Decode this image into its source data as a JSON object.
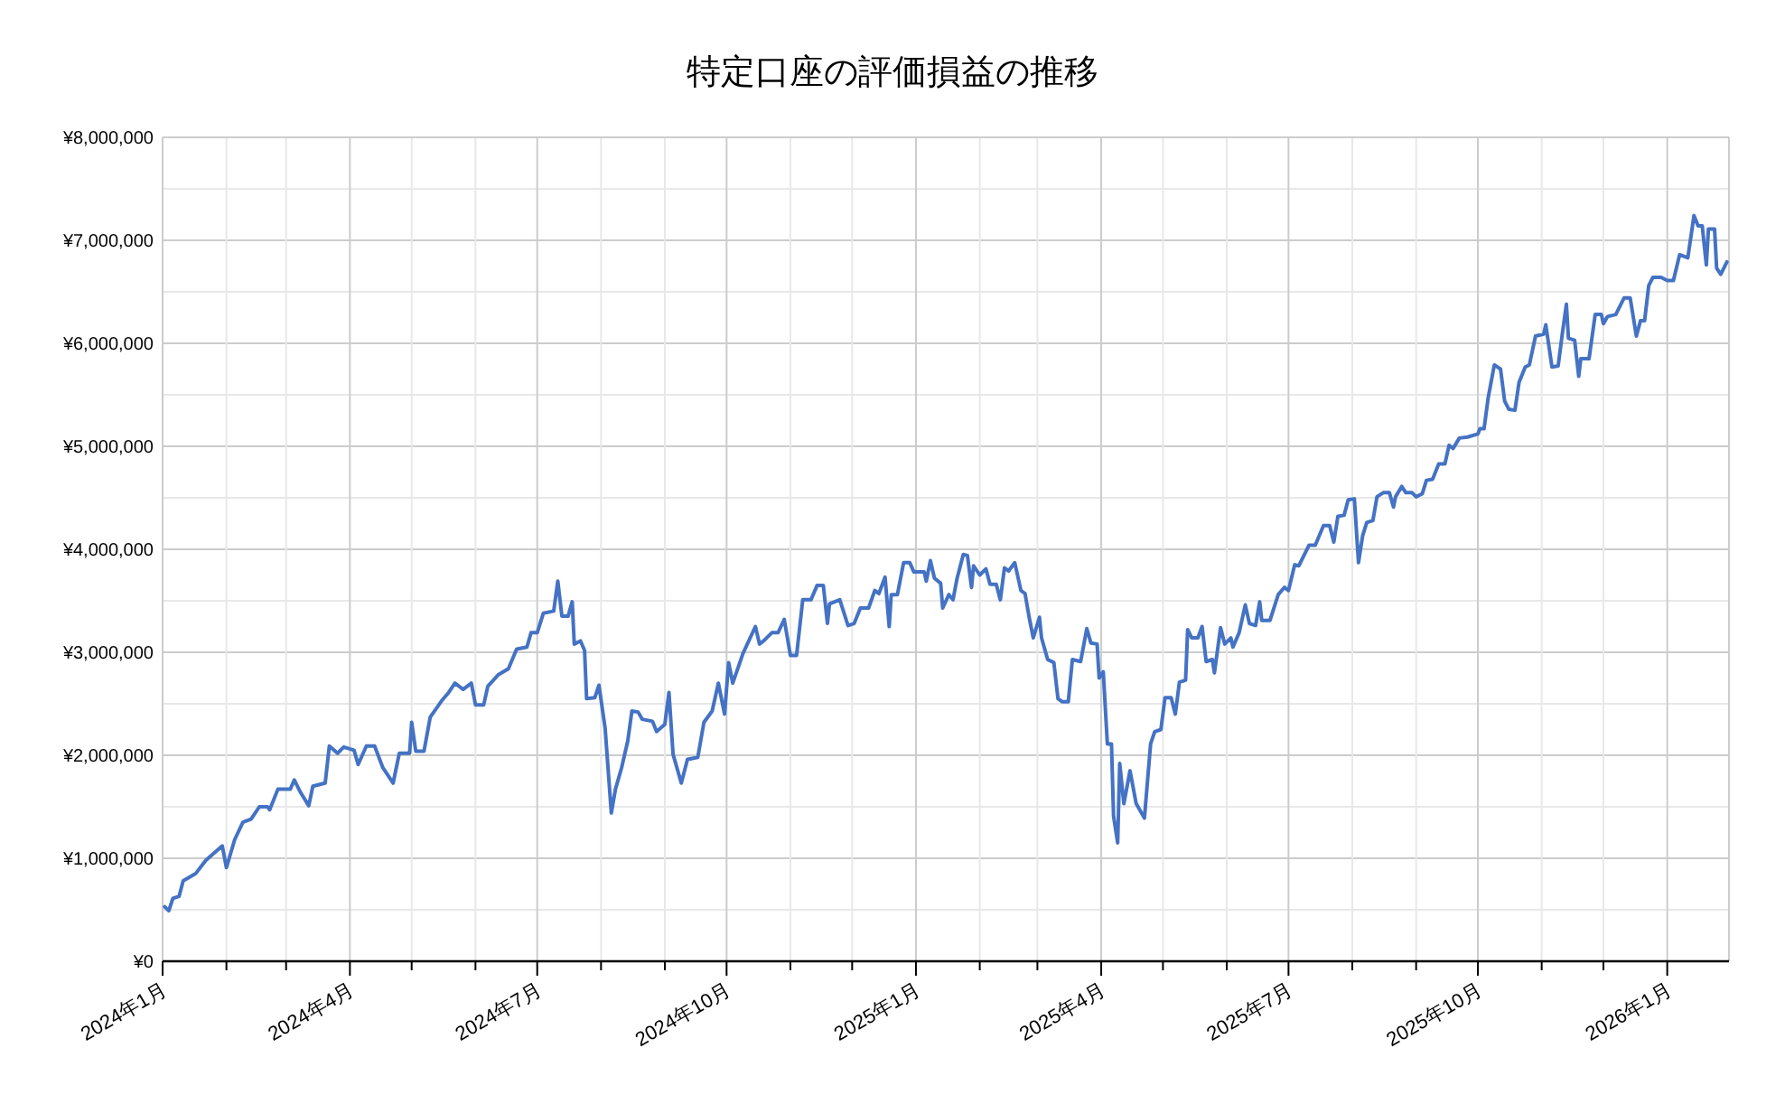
{
  "chart_data": {
    "type": "line",
    "title": "特定口座の評価損益の推移",
    "x": [
      "2024-01-02",
      "2024-01-04",
      "2024-01-06",
      "2024-01-09",
      "2024-01-11",
      "2024-01-17",
      "2024-01-22",
      "2024-01-30",
      "2024-02-01",
      "2024-02-05",
      "2024-02-09",
      "2024-02-13",
      "2024-02-17",
      "2024-02-21",
      "2024-02-22",
      "2024-02-26",
      "2024-03-03",
      "2024-03-05",
      "2024-03-08",
      "2024-03-12",
      "2024-03-14",
      "2024-03-20",
      "2024-03-22",
      "2024-03-26",
      "2024-03-29",
      "2024-04-03",
      "2024-04-05",
      "2024-04-09",
      "2024-04-13",
      "2024-04-17",
      "2024-04-22",
      "2024-04-25",
      "2024-04-30",
      "2024-05-01",
      "2024-05-03",
      "2024-05-07",
      "2024-05-10",
      "2024-05-16",
      "2024-05-19",
      "2024-05-22",
      "2024-05-26",
      "2024-05-30",
      "2024-06-01",
      "2024-06-05",
      "2024-06-07",
      "2024-06-12",
      "2024-06-17",
      "2024-06-21",
      "2024-06-26",
      "2024-06-28",
      "2024-07-01",
      "2024-07-04",
      "2024-07-09",
      "2024-07-11",
      "2024-07-13",
      "2024-07-16",
      "2024-07-18",
      "2024-07-19",
      "2024-07-22",
      "2024-07-24",
      "2024-07-25",
      "2024-07-29",
      "2024-07-31",
      "2024-08-03",
      "2024-08-06",
      "2024-08-08",
      "2024-08-11",
      "2024-08-14",
      "2024-08-16",
      "2024-08-19",
      "2024-08-21",
      "2024-08-26",
      "2024-08-28",
      "2024-09-01",
      "2024-09-03",
      "2024-09-05",
      "2024-09-09",
      "2024-09-12",
      "2024-09-17",
      "2024-09-20",
      "2024-09-24",
      "2024-09-27",
      "2024-09-30",
      "2024-10-02",
      "2024-10-04",
      "2024-10-09",
      "2024-10-15",
      "2024-10-17",
      "2024-10-19",
      "2024-10-23",
      "2024-10-26",
      "2024-10-29",
      "2024-11-01",
      "2024-11-04",
      "2024-11-07",
      "2024-11-11",
      "2024-11-14",
      "2024-11-17",
      "2024-11-19",
      "2024-11-20",
      "2024-11-25",
      "2024-11-29",
      "2024-12-02",
      "2024-12-05",
      "2024-12-09",
      "2024-12-12",
      "2024-12-14",
      "2024-12-17",
      "2024-12-19",
      "2024-12-20",
      "2024-12-23",
      "2024-12-26",
      "2024-12-29",
      "2024-12-31",
      "2025-01-05",
      "2025-01-06",
      "2025-01-08",
      "2025-01-10",
      "2025-01-13",
      "2025-01-14",
      "2025-01-17",
      "2025-01-19",
      "2025-01-21",
      "2025-01-24",
      "2025-01-26",
      "2025-01-28",
      "2025-01-29",
      "2025-02-01",
      "2025-02-04",
      "2025-02-06",
      "2025-02-09",
      "2025-02-11",
      "2025-02-13",
      "2025-02-15",
      "2025-02-18",
      "2025-02-21",
      "2025-02-23",
      "2025-02-25",
      "2025-02-27",
      "2025-03-02",
      "2025-03-03",
      "2025-03-06",
      "2025-03-09",
      "2025-03-11",
      "2025-03-13",
      "2025-03-16",
      "2025-03-18",
      "2025-03-22",
      "2025-03-25",
      "2025-03-27",
      "2025-03-30",
      "2025-03-31",
      "2025-04-02",
      "2025-04-04",
      "2025-04-06",
      "2025-04-07",
      "2025-04-09",
      "2025-04-10",
      "2025-04-12",
      "2025-04-15",
      "2025-04-18",
      "2025-04-22",
      "2025-04-25",
      "2025-04-27",
      "2025-04-30",
      "2025-05-02",
      "2025-05-05",
      "2025-05-07",
      "2025-05-09",
      "2025-05-12",
      "2025-05-13",
      "2025-05-15",
      "2025-05-18",
      "2025-05-20",
      "2025-05-22",
      "2025-05-25",
      "2025-05-26",
      "2025-05-29",
      "2025-05-31",
      "2025-06-03",
      "2025-06-04",
      "2025-06-07",
      "2025-06-10",
      "2025-06-12",
      "2025-06-15",
      "2025-06-17",
      "2025-06-18",
      "2025-06-22",
      "2025-06-26",
      "2025-06-29",
      "2025-07-01",
      "2025-07-04",
      "2025-07-06",
      "2025-07-11",
      "2025-07-14",
      "2025-07-18",
      "2025-07-21",
      "2025-07-23",
      "2025-07-25",
      "2025-07-28",
      "2025-07-30",
      "2025-08-02",
      "2025-08-04",
      "2025-08-06",
      "2025-08-08",
      "2025-08-11",
      "2025-08-13",
      "2025-08-16",
      "2025-08-19",
      "2025-08-21",
      "2025-08-22",
      "2025-08-25",
      "2025-08-27",
      "2025-08-30",
      "2025-09-01",
      "2025-09-04",
      "2025-09-06",
      "2025-09-09",
      "2025-09-12",
      "2025-09-15",
      "2025-09-17",
      "2025-09-19",
      "2025-09-22",
      "2025-09-26",
      "2025-10-01",
      "2025-10-02",
      "2025-10-04",
      "2025-10-06",
      "2025-10-09",
      "2025-10-12",
      "2025-10-14",
      "2025-10-16",
      "2025-10-19",
      "2025-10-21",
      "2025-10-24",
      "2025-10-26",
      "2025-10-29",
      "2025-11-02",
      "2025-11-03",
      "2025-11-06",
      "2025-11-09",
      "2025-11-11",
      "2025-11-13",
      "2025-11-14",
      "2025-11-17",
      "2025-11-19",
      "2025-11-20",
      "2025-11-24",
      "2025-11-27",
      "2025-11-30",
      "2025-12-01",
      "2025-12-03",
      "2025-12-07",
      "2025-12-11",
      "2025-12-14",
      "2025-12-17",
      "2025-12-19",
      "2025-12-21",
      "2025-12-23",
      "2025-12-25",
      "2025-12-29",
      "2026-01-01",
      "2026-01-04",
      "2026-01-07",
      "2026-01-11",
      "2026-01-14",
      "2026-01-16",
      "2026-01-18",
      "2026-01-20",
      "2026-01-21",
      "2026-01-24",
      "2026-01-25",
      "2026-01-27",
      "2026-01-30"
    ],
    "series": [
      {
        "color": "#4472c4",
        "values": [
          530000,
          490000,
          610000,
          630000,
          780000,
          850000,
          980000,
          1120000,
          910000,
          1180000,
          1350000,
          1380000,
          1500000,
          1500000,
          1470000,
          1670000,
          1670000,
          1760000,
          1640000,
          1510000,
          1700000,
          1730000,
          2090000,
          2020000,
          2080000,
          2050000,
          1910000,
          2090000,
          2090000,
          1880000,
          1730000,
          2020000,
          2020000,
          2320000,
          2040000,
          2040000,
          2370000,
          2540000,
          2610000,
          2700000,
          2640000,
          2700000,
          2490000,
          2490000,
          2670000,
          2780000,
          2840000,
          3030000,
          3050000,
          3190000,
          3190000,
          3380000,
          3400000,
          3690000,
          3350000,
          3350000,
          3490000,
          3080000,
          3110000,
          3020000,
          2550000,
          2560000,
          2680000,
          2260000,
          1440000,
          1670000,
          1880000,
          2140000,
          2430000,
          2420000,
          2350000,
          2330000,
          2230000,
          2300000,
          2610000,
          2010000,
          1730000,
          1960000,
          1980000,
          2320000,
          2430000,
          2700000,
          2400000,
          2900000,
          2700000,
          2990000,
          3250000,
          3080000,
          3110000,
          3190000,
          3190000,
          3320000,
          2970000,
          2970000,
          3510000,
          3510000,
          3650000,
          3650000,
          3280000,
          3470000,
          3510000,
          3260000,
          3280000,
          3430000,
          3430000,
          3600000,
          3570000,
          3730000,
          3250000,
          3560000,
          3560000,
          3870000,
          3870000,
          3780000,
          3780000,
          3690000,
          3890000,
          3720000,
          3670000,
          3430000,
          3560000,
          3510000,
          3720000,
          3950000,
          3940000,
          3630000,
          3840000,
          3750000,
          3810000,
          3660000,
          3660000,
          3510000,
          3820000,
          3790000,
          3870000,
          3600000,
          3570000,
          3340000,
          3140000,
          3340000,
          3140000,
          2930000,
          2900000,
          2550000,
          2520000,
          2520000,
          2930000,
          2910000,
          3230000,
          3090000,
          3080000,
          2750000,
          2810000,
          2110000,
          2110000,
          1410000,
          1150000,
          1920000,
          1530000,
          1850000,
          1530000,
          1390000,
          2110000,
          2230000,
          2250000,
          2560000,
          2560000,
          2400000,
          2710000,
          2730000,
          3220000,
          3140000,
          3140000,
          3250000,
          2910000,
          2930000,
          2800000,
          3240000,
          3080000,
          3140000,
          3050000,
          3190000,
          3460000,
          3280000,
          3260000,
          3490000,
          3310000,
          3310000,
          3560000,
          3630000,
          3600000,
          3850000,
          3840000,
          4040000,
          4040000,
          4230000,
          4230000,
          4070000,
          4320000,
          4330000,
          4480000,
          4490000,
          3870000,
          4130000,
          4260000,
          4280000,
          4510000,
          4550000,
          4550000,
          4410000,
          4510000,
          4610000,
          4550000,
          4550000,
          4510000,
          4540000,
          4670000,
          4680000,
          4830000,
          4830000,
          5010000,
          4980000,
          5080000,
          5090000,
          5120000,
          5170000,
          5170000,
          5470000,
          5790000,
          5750000,
          5440000,
          5360000,
          5350000,
          5620000,
          5770000,
          5790000,
          6070000,
          6090000,
          6180000,
          5770000,
          5780000,
          6090000,
          6380000,
          6050000,
          6030000,
          5680000,
          5850000,
          5850000,
          6280000,
          6280000,
          6190000,
          6260000,
          6280000,
          6440000,
          6440000,
          6070000,
          6220000,
          6220000,
          6560000,
          6640000,
          6640000,
          6610000,
          6610000,
          6860000,
          6830000,
          7240000,
          7140000,
          7140000,
          6760000,
          7110000,
          7110000,
          6730000,
          6670000,
          6790000
        ]
      }
    ],
    "xlim": [
      "2024-01-01",
      "2026-01-31"
    ],
    "xticks": [
      {
        "value": "2024-01",
        "label": "2024年1月"
      },
      {
        "value": "2024-02",
        "label": null
      },
      {
        "value": "2024-03",
        "label": null
      },
      {
        "value": "2024-04",
        "label": "2024年4月"
      },
      {
        "value": "2024-05",
        "label": null
      },
      {
        "value": "2024-06",
        "label": null
      },
      {
        "value": "2024-07",
        "label": "2024年7月"
      },
      {
        "value": "2024-08",
        "label": null
      },
      {
        "value": "2024-09",
        "label": null
      },
      {
        "value": "2024-10",
        "label": "2024年10月"
      },
      {
        "value": "2024-11",
        "label": null
      },
      {
        "value": "2024-12",
        "label": null
      },
      {
        "value": "2025-01",
        "label": "2025年1月"
      },
      {
        "value": "2025-02",
        "label": null
      },
      {
        "value": "2025-03",
        "label": null
      },
      {
        "value": "2025-04",
        "label": "2025年4月"
      },
      {
        "value": "2025-05",
        "label": null
      },
      {
        "value": "2025-06",
        "label": null
      },
      {
        "value": "2025-07",
        "label": "2025年7月"
      },
      {
        "value": "2025-08",
        "label": null
      },
      {
        "value": "2025-09",
        "label": null
      },
      {
        "value": "2025-10",
        "label": "2025年10月"
      },
      {
        "value": "2025-11",
        "label": null
      },
      {
        "value": "2025-12",
        "label": null
      },
      {
        "value": "2026-01",
        "label": "2026年1月"
      }
    ],
    "ylim": [
      0,
      8000000
    ],
    "yticks": [
      {
        "value": 0,
        "label": "¥0"
      },
      {
        "value": 500000,
        "label": null
      },
      {
        "value": 1000000,
        "label": "¥1,000,000"
      },
      {
        "value": 1500000,
        "label": null
      },
      {
        "value": 2000000,
        "label": "¥2,000,000"
      },
      {
        "value": 2500000,
        "label": null
      },
      {
        "value": 3000000,
        "label": "¥3,000,000"
      },
      {
        "value": 3500000,
        "label": null
      },
      {
        "value": 4000000,
        "label": "¥4,000,000"
      },
      {
        "value": 4500000,
        "label": null
      },
      {
        "value": 5000000,
        "label": "¥5,000,000"
      },
      {
        "value": 5500000,
        "label": null
      },
      {
        "value": 6000000,
        "label": "¥6,000,000"
      },
      {
        "value": 6500000,
        "label": null
      },
      {
        "value": 7000000,
        "label": "¥7,000,000"
      },
      {
        "value": 7500000,
        "label": null
      },
      {
        "value": 8000000,
        "label": "¥8,000,000"
      }
    ],
    "grid": true
  }
}
